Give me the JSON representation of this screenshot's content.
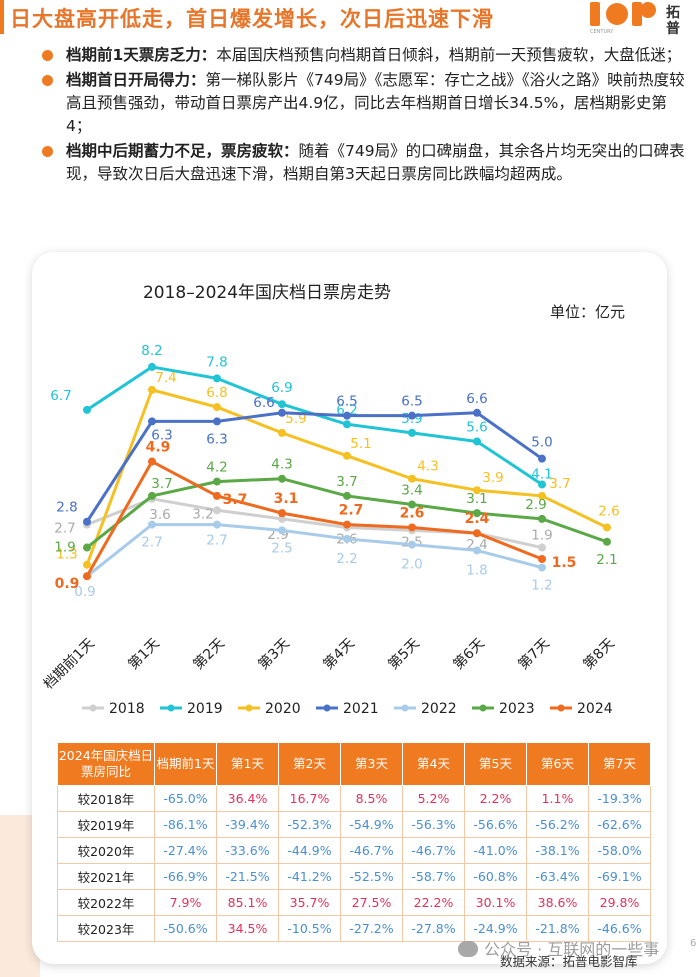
{
  "header": {
    "title": "日大盘高开低走，首日爆发增长，次日后迅速下滑",
    "logo_text": "拓普",
    "logo_sub": "CENTURY",
    "accent": "#f07a20"
  },
  "bullets": [
    {
      "bold": "档期前1天票房乏力：",
      "text": "本届国庆档预售向档期首日倾斜，档期前一天预售疲软，大盘低迷；"
    },
    {
      "bold": "档期首日开局得力：",
      "text": "第一梯队影片《749局》《志愿军：存亡之战》《浴火之路》映前热度较高且预售强劲，带动首日票房产出4.9亿，同比去年档期首日增长34.5%，居档期影史第4；"
    },
    {
      "bold": "档期中后期蓄力不足，票房疲软：",
      "text": "随着《749局》的口碑崩盘，其余各片均无突出的口碑表现，导致次日后大盘迅速下滑，档期自第3天起日票房同比跌幅均超两成。"
    }
  ],
  "chart_data": {
    "type": "line",
    "title": "2018–2024年国庆档日票房走势",
    "unit_label": "单位：亿元",
    "categories": [
      "档期前1天",
      "第1天",
      "第2天",
      "第3天",
      "第4天",
      "第5天",
      "第6天",
      "第7天",
      "第8天"
    ],
    "ylim": [
      0,
      9
    ],
    "grid": false,
    "legend_position": "bottom",
    "series": [
      {
        "name": "2018",
        "color": "#cfcfcf",
        "values": [
          2.7,
          3.6,
          3.2,
          2.9,
          2.6,
          2.5,
          2.4,
          1.9,
          null
        ]
      },
      {
        "name": "2019",
        "color": "#21c4d4",
        "values": [
          6.7,
          8.2,
          7.8,
          6.9,
          6.2,
          5.9,
          5.6,
          4.1,
          null
        ]
      },
      {
        "name": "2020",
        "color": "#f5c022",
        "values": [
          1.3,
          7.4,
          6.8,
          5.9,
          5.1,
          4.3,
          3.9,
          3.7,
          2.6
        ]
      },
      {
        "name": "2021",
        "color": "#4a70c8",
        "values": [
          2.8,
          6.3,
          6.3,
          6.6,
          6.5,
          6.5,
          6.6,
          5.0,
          null
        ]
      },
      {
        "name": "2022",
        "color": "#a8cbea",
        "values": [
          0.9,
          2.7,
          2.7,
          2.5,
          2.2,
          2.0,
          1.8,
          1.2,
          null
        ]
      },
      {
        "name": "2023",
        "color": "#5aa846",
        "values": [
          1.9,
          3.7,
          4.2,
          4.3,
          3.7,
          3.4,
          3.1,
          2.9,
          2.1
        ]
      },
      {
        "name": "2024",
        "color": "#ef6a1e",
        "values": [
          0.9,
          4.9,
          3.7,
          3.1,
          2.7,
          2.6,
          2.4,
          1.5,
          null
        ]
      }
    ]
  },
  "table": {
    "header_label": "2024年国庆档日票房同比",
    "columns": [
      "档期前1天",
      "第1天",
      "第2天",
      "第3天",
      "第4天",
      "第5天",
      "第6天",
      "第7天"
    ],
    "rows": [
      {
        "label": "较2018年",
        "values": [
          "-65.0%",
          "36.4%",
          "16.7%",
          "8.5%",
          "5.2%",
          "2.2%",
          "1.1%",
          "-19.3%"
        ]
      },
      {
        "label": "较2019年",
        "values": [
          "-86.1%",
          "-39.4%",
          "-52.3%",
          "-54.9%",
          "-56.3%",
          "-56.6%",
          "-56.2%",
          "-62.6%"
        ]
      },
      {
        "label": "较2020年",
        "values": [
          "-27.4%",
          "-33.6%",
          "-44.9%",
          "-46.7%",
          "-46.7%",
          "-41.0%",
          "-38.1%",
          "-58.0%"
        ]
      },
      {
        "label": "较2021年",
        "values": [
          "-66.9%",
          "-21.5%",
          "-41.2%",
          "-52.5%",
          "-58.7%",
          "-60.8%",
          "-63.4%",
          "-69.1%"
        ]
      },
      {
        "label": "较2022年",
        "values": [
          "7.9%",
          "85.1%",
          "35.7%",
          "27.5%",
          "22.2%",
          "30.1%",
          "38.6%",
          "29.8%"
        ]
      },
      {
        "label": "较2023年",
        "values": [
          "-50.6%",
          "34.5%",
          "-10.5%",
          "-27.2%",
          "-27.8%",
          "-24.9%",
          "-21.8%",
          "-46.6%"
        ]
      }
    ],
    "positive_color": "#e6305a",
    "negative_color": "#4a8fd1"
  },
  "footer": {
    "source": "数据来源：拓普电影智库",
    "watermark": "公众号 · 互联网的一些事",
    "page_number": "6"
  }
}
